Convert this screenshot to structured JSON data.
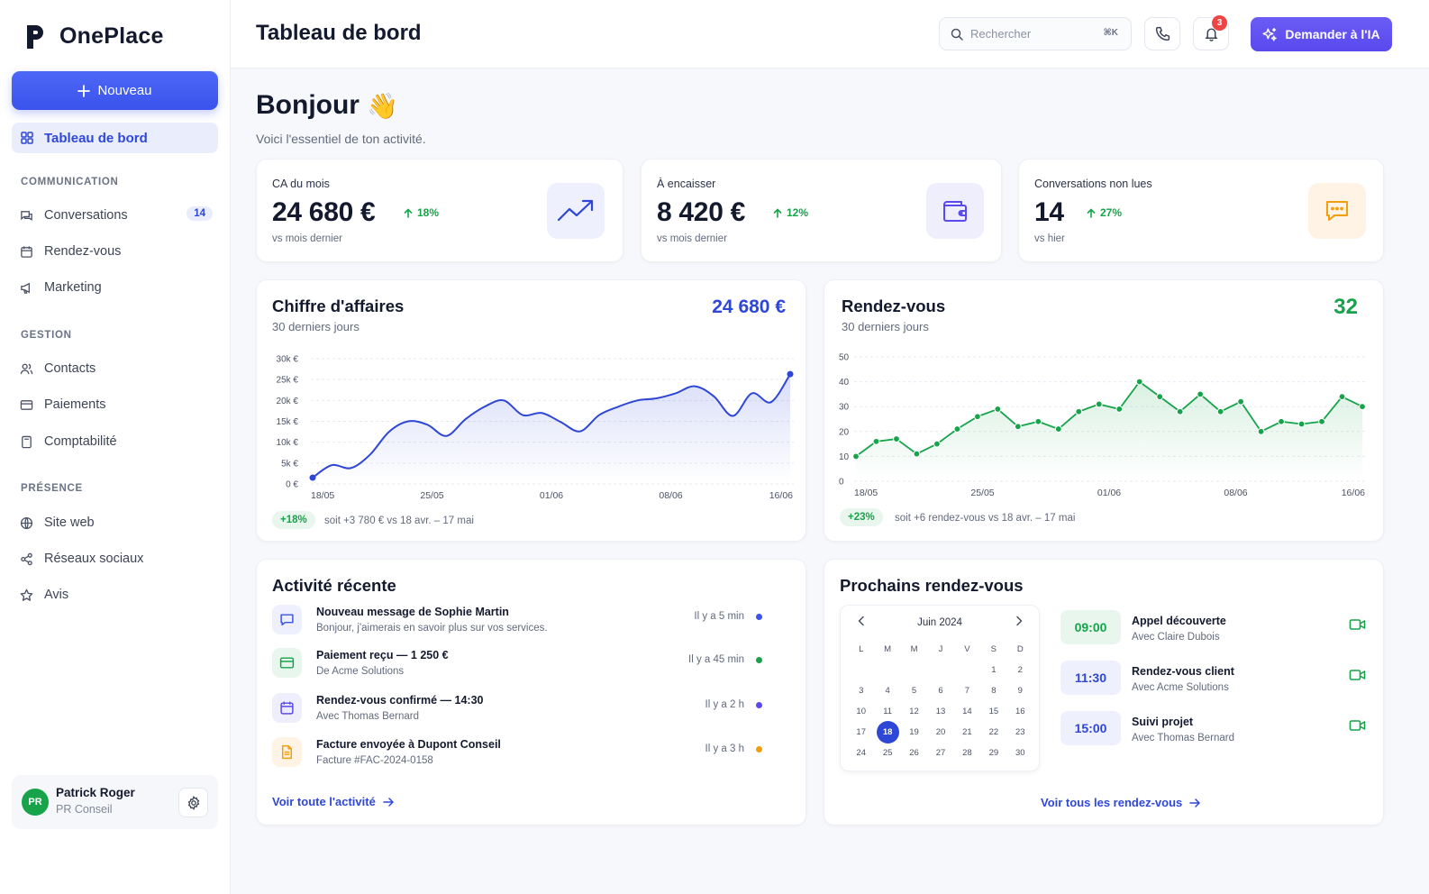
{
  "app": {
    "name": "OnePlace"
  },
  "sidebar": {
    "new_label": "Nouveau",
    "active_item": "Tableau de bord",
    "sections": {
      "communication": "COMMUNICATION",
      "gestion": "GESTION",
      "presence": "PRÉSENCE"
    },
    "items": {
      "conversations": {
        "label": "Conversations",
        "badge": "14"
      },
      "rendezvous": {
        "label": "Rendez-vous"
      },
      "marketing": {
        "label": "Marketing"
      },
      "contacts": {
        "label": "Contacts"
      },
      "paiements": {
        "label": "Paiements"
      },
      "comptabilite": {
        "label": "Comptabilité"
      },
      "siteweb": {
        "label": "Site web"
      },
      "reseaux": {
        "label": "Réseaux sociaux"
      },
      "avis": {
        "label": "Avis"
      }
    },
    "user": {
      "initials": "PR",
      "name": "Patrick Roger",
      "company": "PR Conseil"
    }
  },
  "header": {
    "title": "Tableau de bord",
    "search_placeholder": "Rechercher",
    "search_shortcut": "⌘K",
    "notifications_count": "3",
    "ai_label": "Demander à l'IA"
  },
  "greeting": {
    "title": "Bonjour",
    "emoji": "👋",
    "subtitle": "Voici l'essentiel de ton activité."
  },
  "kpis": [
    {
      "label": "CA du mois",
      "value": "24 680 €",
      "delta": "18%",
      "sub": "vs mois dernier",
      "icon": "trending-up-icon",
      "accent": "#3a54ec"
    },
    {
      "label": "À encaisser",
      "value": "8 420 €",
      "delta": "12%",
      "sub": "vs mois dernier",
      "icon": "wallet-icon",
      "accent": "#5a49ee"
    },
    {
      "label": "Conversations non lues",
      "value": "14",
      "delta": "27%",
      "sub": "vs hier",
      "icon": "message-icon",
      "accent": "#f59e0b"
    }
  ],
  "revenue": {
    "title": "Chiffre d'affaires",
    "subtitle": "30 derniers jours",
    "total": "24 680 €",
    "pill": "+18%",
    "note": "soit +3 780 € vs 18 avr. – 17 mai",
    "color": "#2f47d6",
    "chart_data": {
      "type": "area",
      "y_ticks": [
        "0 €",
        "5k €",
        "10k €",
        "15k €",
        "20k €",
        "25k €",
        "30k €"
      ],
      "ylim": [
        0,
        30000
      ],
      "x_ticks": [
        "18/05",
        "25/05",
        "01/06",
        "08/06",
        "16/06"
      ],
      "values": [
        1500,
        4500,
        3800,
        7000,
        12500,
        15000,
        14200,
        11500,
        15500,
        18500,
        20000,
        16500,
        17000,
        14800,
        12600,
        16500,
        18500,
        20000,
        20500,
        21700,
        23400,
        21000,
        16300,
        21700,
        19600,
        26300
      ]
    }
  },
  "appointments_chart": {
    "title": "Rendez-vous",
    "subtitle": "30 derniers jours",
    "total": "32",
    "pill": "+23%",
    "note": "soit +6 rendez-vous vs 18 avr. – 17 mai",
    "color": "#16a34a",
    "chart_data": {
      "type": "line",
      "y_ticks": [
        "0",
        "10",
        "20",
        "30",
        "40",
        "50"
      ],
      "ylim": [
        0,
        50
      ],
      "x_ticks": [
        "18/05",
        "25/05",
        "01/06",
        "08/06",
        "16/06"
      ],
      "values": [
        10,
        16,
        17,
        11,
        15,
        21,
        26,
        29,
        22,
        24,
        21,
        28,
        31,
        29,
        40,
        34,
        28,
        35,
        28,
        32,
        20,
        24,
        23,
        24,
        34,
        30
      ]
    }
  },
  "activity": {
    "title": "Activité récente",
    "link": "Voir toute l'activité",
    "items": [
      {
        "title": "Nouveau message de Sophie Martin",
        "desc": "Bonjour, j'aimerais en savoir plus sur vos services.",
        "time": "Il y a 5 min",
        "icon": "chat-icon",
        "dot": "#3a54ec"
      },
      {
        "title": "Paiement reçu  —  1 250 €",
        "desc": "De Acme Solutions",
        "time": "Il y a 45 min",
        "icon": "card-icon",
        "dot": "#16a34a"
      },
      {
        "title": "Rendez-vous confirmé  —  14:30",
        "desc": "Avec Thomas Bernard",
        "time": "Il y a 2 h",
        "icon": "calendar-icon",
        "dot": "#5a49ee"
      },
      {
        "title": "Facture envoyée à Dupont Conseil",
        "desc": "Facture #FAC-2024-0158",
        "time": "Il y a 3 h",
        "icon": "invoice-icon",
        "dot": "#f59e0b"
      }
    ]
  },
  "upcoming": {
    "title": "Prochains rendez-vous",
    "link": "Voir tous les rendez-vous",
    "calendar": {
      "month": "Juin 2024",
      "weekdays": [
        "L",
        "M",
        "M",
        "J",
        "V",
        "S",
        "D"
      ],
      "selected": "18",
      "weeks": [
        [
          "",
          "",
          "",
          "",
          "",
          "1",
          "2"
        ],
        [
          "3",
          "4",
          "5",
          "6",
          "7",
          "8",
          "9"
        ],
        [
          "10",
          "11",
          "12",
          "13",
          "14",
          "15",
          "16"
        ],
        [
          "17",
          "18",
          "19",
          "20",
          "21",
          "22",
          "23"
        ],
        [
          "24",
          "25",
          "26",
          "27",
          "28",
          "29",
          "30"
        ]
      ]
    },
    "items": [
      {
        "time": "09:00",
        "title": "Appel découverte",
        "sub": "Avec Claire Dubois",
        "variant": "green"
      },
      {
        "time": "11:30",
        "title": "Rendez-vous client",
        "sub": "Avec Acme Solutions",
        "variant": "blue"
      },
      {
        "time": "15:00",
        "title": "Suivi projet",
        "sub": "Avec Thomas Bernard",
        "variant": "blue"
      }
    ]
  }
}
